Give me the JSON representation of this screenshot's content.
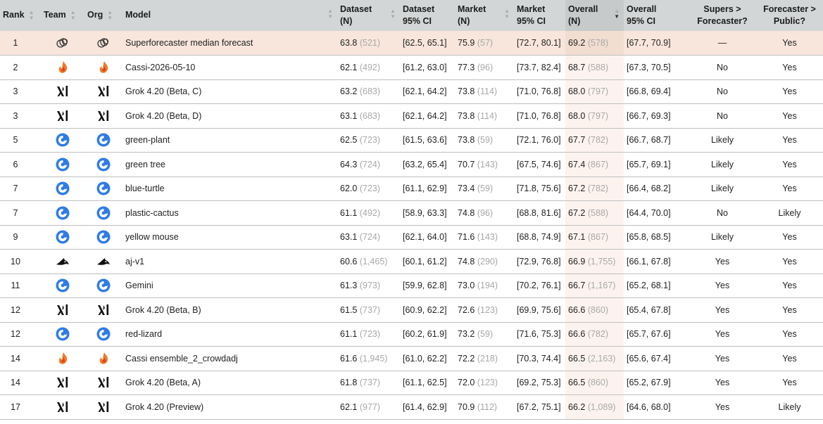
{
  "columns": {
    "rank": "Rank",
    "team": "Team",
    "org": "Org",
    "model": "Model",
    "dataset_n": [
      "Dataset",
      "(N)"
    ],
    "dataset_ci": [
      "Dataset",
      "95% CI"
    ],
    "market_n": [
      "Market",
      "(N)"
    ],
    "market_ci": [
      "Market",
      "95% CI"
    ],
    "overall_n": [
      "Overall",
      "(N)"
    ],
    "overall_ci": [
      "Overall",
      "95% CI"
    ],
    "supers": [
      "Supers >",
      "Forecaster?"
    ],
    "public": [
      "Forecaster >",
      "Public?"
    ]
  },
  "colors": {
    "header_bg": "#d3d6d6",
    "highlight_row": "#f8e6dc",
    "overall_col": "#fcf3ee",
    "openai_blue": "#2f7ce6"
  },
  "rows": [
    {
      "rank": "1",
      "icon": "superforecaster-icon",
      "model": "Superforecaster median forecast",
      "dataset": "63.8",
      "dataset_n": "(521)",
      "dataset_ci": "[62.5, 65.1]",
      "market": "75.9",
      "market_n": "(57)",
      "market_ci": "[72.7, 80.1]",
      "overall": "69.2",
      "overall_n": "(578)",
      "overall_ci": "[67.7, 70.9]",
      "supers": "—",
      "public": "Yes"
    },
    {
      "rank": "2",
      "icon": "cassi-flame-icon",
      "model": "Cassi-2026-05-10",
      "dataset": "62.1",
      "dataset_n": "(492)",
      "dataset_ci": "[61.2, 63.0]",
      "market": "77.3",
      "market_n": "(96)",
      "market_ci": "[73.7, 82.4]",
      "overall": "68.7",
      "overall_n": "(588)",
      "overall_ci": "[67.3, 70.5]",
      "supers": "No",
      "public": "Yes"
    },
    {
      "rank": "3",
      "icon": "xai-icon",
      "model": "Grok 4.20 (Beta, C)",
      "dataset": "63.2",
      "dataset_n": "(683)",
      "dataset_ci": "[62.1, 64.2]",
      "market": "73.8",
      "market_n": "(114)",
      "market_ci": "[71.0, 76.8]",
      "overall": "68.0",
      "overall_n": "(797)",
      "overall_ci": "[66.8, 69.4]",
      "supers": "No",
      "public": "Yes"
    },
    {
      "rank": "3",
      "icon": "xai-icon",
      "model": "Grok 4.20 (Beta, D)",
      "dataset": "63.1",
      "dataset_n": "(683)",
      "dataset_ci": "[62.1, 64.2]",
      "market": "73.8",
      "market_n": "(114)",
      "market_ci": "[71.0, 76.8]",
      "overall": "68.0",
      "overall_n": "(797)",
      "overall_ci": "[66.7, 69.3]",
      "supers": "No",
      "public": "Yes"
    },
    {
      "rank": "5",
      "icon": "openai-swirl-icon",
      "model": "green-plant",
      "dataset": "62.5",
      "dataset_n": "(723)",
      "dataset_ci": "[61.5, 63.6]",
      "market": "73.8",
      "market_n": "(59)",
      "market_ci": "[72.1, 76.0]",
      "overall": "67.7",
      "overall_n": "(782)",
      "overall_ci": "[66.7, 68.7]",
      "supers": "Likely",
      "public": "Yes"
    },
    {
      "rank": "6",
      "icon": "openai-swirl-icon",
      "model": "green tree",
      "dataset": "64.3",
      "dataset_n": "(724)",
      "dataset_ci": "[63.2, 65.4]",
      "market": "70.7",
      "market_n": "(143)",
      "market_ci": "[67.5, 74.6]",
      "overall": "67.4",
      "overall_n": "(867)",
      "overall_ci": "[65.7, 69.1]",
      "supers": "Likely",
      "public": "Yes"
    },
    {
      "rank": "7",
      "icon": "openai-swirl-icon",
      "model": "blue-turtle",
      "dataset": "62.0",
      "dataset_n": "(723)",
      "dataset_ci": "[61.1, 62.9]",
      "market": "73.4",
      "market_n": "(59)",
      "market_ci": "[71.8, 75.6]",
      "overall": "67.2",
      "overall_n": "(782)",
      "overall_ci": "[66.4, 68.2]",
      "supers": "Likely",
      "public": "Yes"
    },
    {
      "rank": "7",
      "icon": "openai-swirl-icon",
      "model": "plastic-cactus",
      "dataset": "61.1",
      "dataset_n": "(492)",
      "dataset_ci": "[58.9, 63.3]",
      "market": "74.8",
      "market_n": "(96)",
      "market_ci": "[68.8, 81.6]",
      "overall": "67.2",
      "overall_n": "(588)",
      "overall_ci": "[64.4, 70.0]",
      "supers": "No",
      "public": "Likely"
    },
    {
      "rank": "9",
      "icon": "openai-swirl-icon",
      "model": "yellow mouse",
      "dataset": "63.1",
      "dataset_n": "(724)",
      "dataset_ci": "[62.1, 64.0]",
      "market": "71.6",
      "market_n": "(143)",
      "market_ci": "[68.8, 74.9]",
      "overall": "67.1",
      "overall_n": "(867)",
      "overall_ci": "[65.8, 68.5]",
      "supers": "Likely",
      "public": "Yes"
    },
    {
      "rank": "10",
      "icon": "aj-shark-icon",
      "model": "aj-v1",
      "dataset": "60.6",
      "dataset_n": "(1,465)",
      "dataset_ci": "[60.1, 61.2]",
      "market": "74.8",
      "market_n": "(290)",
      "market_ci": "[72.9, 76.8]",
      "overall": "66.9",
      "overall_n": "(1,755)",
      "overall_ci": "[66.1, 67.8]",
      "supers": "Yes",
      "public": "Yes"
    },
    {
      "rank": "11",
      "icon": "openai-swirl-icon",
      "model": "Gemini",
      "dataset": "61.3",
      "dataset_n": "(973)",
      "dataset_ci": "[59.9, 62.8]",
      "market": "73.0",
      "market_n": "(194)",
      "market_ci": "[70.2, 76.1]",
      "overall": "66.7",
      "overall_n": "(1,167)",
      "overall_ci": "[65.2, 68.1]",
      "supers": "Yes",
      "public": "Yes"
    },
    {
      "rank": "12",
      "icon": "xai-icon",
      "model": "Grok 4.20 (Beta, B)",
      "dataset": "61.5",
      "dataset_n": "(737)",
      "dataset_ci": "[60.9, 62.2]",
      "market": "72.6",
      "market_n": "(123)",
      "market_ci": "[69.9, 75.6]",
      "overall": "66.6",
      "overall_n": "(860)",
      "overall_ci": "[65.4, 67.8]",
      "supers": "Yes",
      "public": "Yes"
    },
    {
      "rank": "12",
      "icon": "openai-swirl-icon",
      "model": "red-lizard",
      "dataset": "61.1",
      "dataset_n": "(723)",
      "dataset_ci": "[60.2, 61.9]",
      "market": "73.2",
      "market_n": "(59)",
      "market_ci": "[71.6, 75.3]",
      "overall": "66.6",
      "overall_n": "(782)",
      "overall_ci": "[65.7, 67.6]",
      "supers": "Yes",
      "public": "Yes"
    },
    {
      "rank": "14",
      "icon": "cassi-flame-icon",
      "model": "Cassi ensemble_2_crowdadj",
      "dataset": "61.6",
      "dataset_n": "(1,945)",
      "dataset_ci": "[61.0, 62.2]",
      "market": "72.2",
      "market_n": "(218)",
      "market_ci": "[70.3, 74.4]",
      "overall": "66.5",
      "overall_n": "(2,163)",
      "overall_ci": "[65.6, 67.4]",
      "supers": "Yes",
      "public": "Yes"
    },
    {
      "rank": "14",
      "icon": "xai-icon",
      "model": "Grok 4.20 (Beta, A)",
      "dataset": "61.8",
      "dataset_n": "(737)",
      "dataset_ci": "[61.1, 62.5]",
      "market": "72.0",
      "market_n": "(123)",
      "market_ci": "[69.2, 75.3]",
      "overall": "66.5",
      "overall_n": "(860)",
      "overall_ci": "[65.2, 67.9]",
      "supers": "Yes",
      "public": "Yes"
    },
    {
      "rank": "17",
      "icon": "xai-icon",
      "model": "Grok 4.20 (Preview)",
      "dataset": "62.1",
      "dataset_n": "(977)",
      "dataset_ci": "[61.4, 62.9]",
      "market": "70.9",
      "market_n": "(112)",
      "market_ci": "[67.2, 75.1]",
      "overall": "66.2",
      "overall_n": "(1,089)",
      "overall_ci": "[64.6, 68.0]",
      "supers": "Yes",
      "public": "Likely"
    }
  ]
}
